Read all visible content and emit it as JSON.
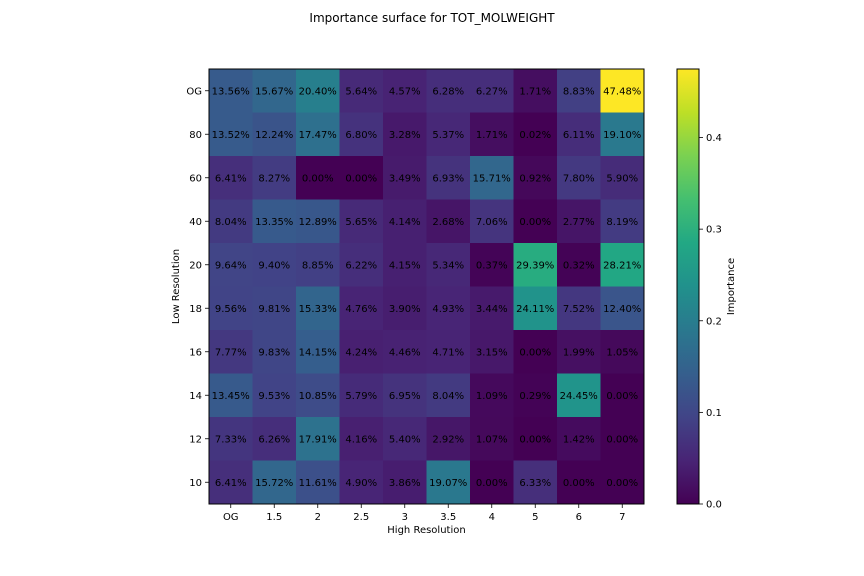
{
  "chart_data": {
    "type": "heatmap",
    "title": "Importance surface for TOT_MOLWEIGHT",
    "xlabel": "High Resolution",
    "ylabel": "Low Resolution",
    "x_categories": [
      "OG",
      "1.5",
      "2",
      "2.5",
      "3",
      "3.5",
      "4",
      "5",
      "6",
      "7"
    ],
    "y_categories": [
      "OG",
      "80",
      "60",
      "40",
      "20",
      "18",
      "16",
      "14",
      "12",
      "10"
    ],
    "values": [
      [
        13.56,
        15.67,
        20.4,
        5.64,
        4.57,
        6.28,
        6.27,
        1.71,
        8.83,
        47.48
      ],
      [
        13.52,
        12.24,
        17.47,
        6.8,
        3.28,
        5.37,
        1.71,
        0.02,
        6.11,
        19.1
      ],
      [
        6.41,
        8.27,
        0.0,
        0.0,
        3.49,
        6.93,
        15.71,
        0.92,
        7.8,
        5.9
      ],
      [
        8.04,
        13.35,
        12.89,
        5.65,
        4.14,
        2.68,
        7.06,
        0.0,
        2.77,
        8.19
      ],
      [
        9.64,
        9.4,
        8.85,
        6.22,
        4.15,
        5.34,
        0.37,
        29.39,
        0.32,
        28.21
      ],
      [
        9.56,
        9.81,
        15.33,
        4.76,
        3.9,
        4.93,
        3.44,
        24.11,
        7.52,
        12.4
      ],
      [
        7.77,
        9.83,
        14.15,
        4.24,
        4.46,
        4.71,
        3.15,
        0.0,
        1.99,
        1.05
      ],
      [
        13.45,
        9.53,
        10.85,
        5.79,
        6.95,
        8.04,
        1.09,
        0.29,
        24.45,
        0.0
      ],
      [
        7.33,
        6.26,
        17.91,
        4.16,
        5.4,
        2.92,
        1.07,
        0.0,
        1.42,
        0.0
      ],
      [
        6.41,
        15.72,
        11.61,
        4.9,
        3.86,
        19.07,
        0.0,
        6.33,
        0.0,
        0.0
      ]
    ],
    "cell_labels": [
      [
        "13.56%",
        "15.67%",
        "20.40%",
        "5.64%",
        "4.57%",
        "6.28%",
        "6.27%",
        "1.71%",
        "8.83%",
        "47.48%"
      ],
      [
        "13.52%",
        "12.24%",
        "17.47%",
        "6.80%",
        "3.28%",
        "5.37%",
        "1.71%",
        "0.02%",
        "6.11%",
        "19.10%"
      ],
      [
        "6.41%",
        "8.27%",
        "0.00%",
        "0.00%",
        "3.49%",
        "6.93%",
        "15.71%",
        "0.92%",
        "7.80%",
        "5.90%"
      ],
      [
        "8.04%",
        "13.35%",
        "12.89%",
        "5.65%",
        "4.14%",
        "2.68%",
        "7.06%",
        "0.00%",
        "2.77%",
        "8.19%"
      ],
      [
        "9.64%",
        "9.40%",
        "8.85%",
        "6.22%",
        "4.15%",
        "5.34%",
        "0.37%",
        "29.39%",
        "0.32%",
        "28.21%"
      ],
      [
        "9.56%",
        "9.81%",
        "15.33%",
        "4.76%",
        "3.90%",
        "4.93%",
        "3.44%",
        "24.11%",
        "7.52%",
        "12.40%"
      ],
      [
        "7.77%",
        "9.83%",
        "14.15%",
        "4.24%",
        "4.46%",
        "4.71%",
        "3.15%",
        "0.00%",
        "1.99%",
        "1.05%"
      ],
      [
        "13.45%",
        "9.53%",
        "10.85%",
        "5.79%",
        "6.95%",
        "8.04%",
        "1.09%",
        "0.29%",
        "24.45%",
        "0.00%"
      ],
      [
        "7.33%",
        "6.26%",
        "17.91%",
        "4.16%",
        "5.40%",
        "2.92%",
        "1.07%",
        "0.00%",
        "1.42%",
        "0.00%"
      ],
      [
        "6.41%",
        "15.72%",
        "11.61%",
        "4.90%",
        "3.86%",
        "19.07%",
        "0.00%",
        "6.33%",
        "0.00%",
        "0.00%"
      ]
    ],
    "colorbar": {
      "label": "Importance",
      "range": [
        0,
        0.4748
      ],
      "ticks": [
        0,
        0.1,
        0.2,
        0.3,
        0.4
      ],
      "tick_labels": [
        "0.0",
        "0.1",
        "0.2",
        "0.3",
        "0.4"
      ],
      "colormap": "viridis"
    },
    "grid": false
  }
}
